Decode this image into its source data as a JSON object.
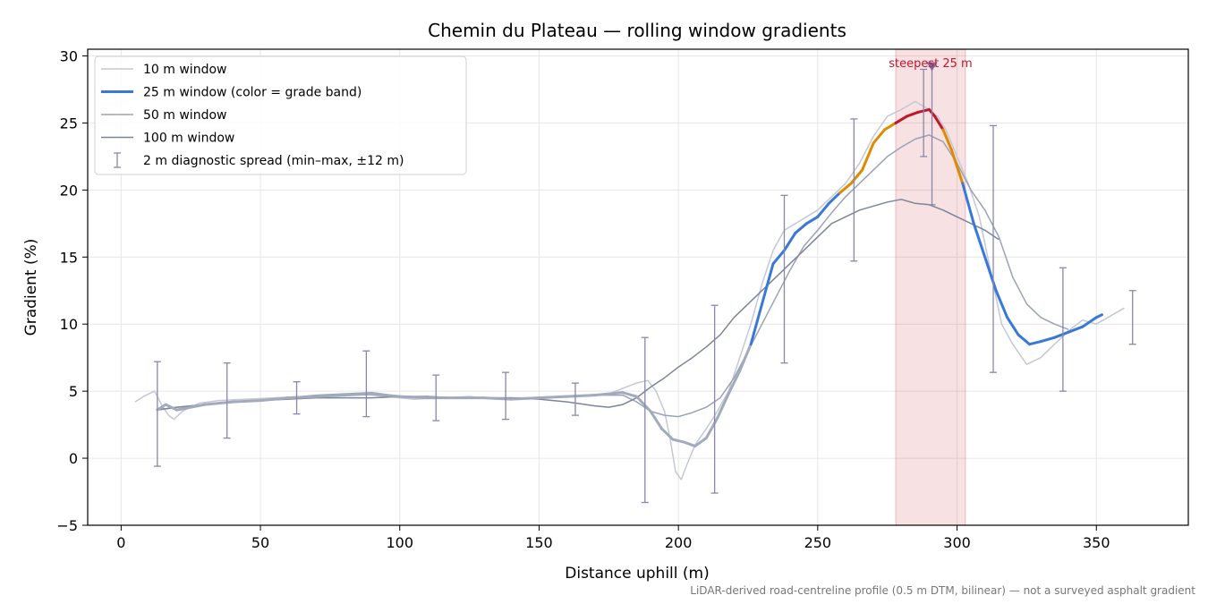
{
  "chart_data": {
    "type": "line",
    "title": "Chemin du Plateau — rolling window gradients",
    "xlabel": "Distance uphill (m)",
    "ylabel": "Gradient (%)",
    "xlim": [
      -12,
      383
    ],
    "ylim": [
      -5,
      30.5
    ],
    "xticks": [
      0,
      50,
      100,
      150,
      200,
      250,
      300,
      350
    ],
    "yticks": [
      -5,
      0,
      5,
      10,
      15,
      20,
      25,
      30
    ],
    "grid": true,
    "legend_position": "top-left",
    "footnote": "LiDAR-derived road-centreline profile (0.5 m DTM, bilinear) — not a surveyed asphalt gradient",
    "highlight": {
      "x_start": 278,
      "x_end": 303,
      "label": "steepest 25 m",
      "marker_x": 291,
      "marker_y": 29.2,
      "color": "#c0182a"
    },
    "grade_band_colors": {
      "low": "#3a78d8",
      "mid": "#e08a00",
      "high": "#c0182a"
    },
    "grade_band_thresholds": [
      20,
      25
    ],
    "series": [
      {
        "name": "10 m window",
        "color": "#c4c8d4",
        "width": 1.5,
        "x": [
          5,
          8,
          12,
          15,
          17,
          19,
          22,
          28,
          35,
          45,
          55,
          65,
          75,
          85,
          95,
          105,
          115,
          125,
          135,
          145,
          155,
          165,
          175,
          180,
          185,
          189,
          192,
          195,
          197,
          199,
          201,
          203,
          206,
          210,
          214,
          218,
          222,
          226,
          230,
          234,
          238,
          242,
          246,
          250,
          255,
          260,
          265,
          270,
          275,
          280,
          285,
          290,
          293,
          296,
          300,
          304,
          308,
          312,
          316,
          320,
          325,
          330,
          335,
          340,
          345,
          350,
          355,
          360
        ],
        "y": [
          4.2,
          4.6,
          5.0,
          3.8,
          3.2,
          2.9,
          3.5,
          4.1,
          4.3,
          4.4,
          4.5,
          4.6,
          4.7,
          4.8,
          4.6,
          4.4,
          4.5,
          4.6,
          4.4,
          4.5,
          4.6,
          4.7,
          4.8,
          5.2,
          5.6,
          5.8,
          5.0,
          3.5,
          1.5,
          -1.0,
          -1.6,
          -0.5,
          1.0,
          2.2,
          3.5,
          5.0,
          7.5,
          10.0,
          13.0,
          15.5,
          17.0,
          17.5,
          18.0,
          18.5,
          19.5,
          20.5,
          22.0,
          24.0,
          25.5,
          26.0,
          26.6,
          26.0,
          25.5,
          24.5,
          22.5,
          20.5,
          18.0,
          14.0,
          10.0,
          8.5,
          7.0,
          7.5,
          8.5,
          9.5,
          10.3,
          10.0,
          10.6,
          11.2
        ]
      },
      {
        "name": "25 m window (color = grade band)",
        "color": "#3a78d8",
        "width": 3,
        "colored_by_grade": true,
        "x": [
          13,
          16,
          20,
          25,
          30,
          40,
          50,
          60,
          70,
          80,
          90,
          100,
          110,
          120,
          130,
          140,
          150,
          160,
          170,
          180,
          185,
          190,
          194,
          198,
          202,
          206,
          210,
          214,
          218,
          222,
          226,
          230,
          234,
          238,
          242,
          246,
          250,
          254,
          258,
          262,
          266,
          270,
          274,
          278,
          282,
          286,
          290,
          292,
          295,
          298,
          302,
          306,
          310,
          314,
          318,
          322,
          326,
          330,
          335,
          340,
          345,
          350,
          352
        ],
        "y": [
          3.6,
          4.0,
          3.6,
          3.8,
          4.0,
          4.2,
          4.3,
          4.5,
          4.6,
          4.7,
          4.8,
          4.6,
          4.5,
          4.5,
          4.5,
          4.4,
          4.5,
          4.6,
          4.7,
          4.9,
          4.6,
          3.5,
          2.2,
          1.4,
          1.2,
          0.9,
          1.5,
          3.0,
          4.8,
          6.5,
          8.5,
          11.5,
          14.5,
          15.5,
          16.8,
          17.5,
          18.0,
          19.0,
          19.8,
          20.5,
          21.5,
          23.5,
          24.5,
          25.0,
          25.5,
          25.8,
          26.0,
          25.5,
          24.5,
          23.0,
          20.5,
          17.5,
          15.0,
          12.5,
          10.5,
          9.2,
          8.5,
          8.7,
          9.0,
          9.4,
          9.8,
          10.5,
          10.7
        ]
      },
      {
        "name": "50 m window",
        "color": "#9aa3b5",
        "width": 1.5,
        "x": [
          13,
          20,
          30,
          40,
          50,
          60,
          70,
          80,
          90,
          100,
          110,
          120,
          130,
          140,
          150,
          160,
          170,
          180,
          185,
          190,
          195,
          200,
          205,
          210,
          215,
          220,
          225,
          230,
          235,
          240,
          245,
          250,
          255,
          260,
          265,
          270,
          275,
          280,
          285,
          290,
          295,
          300,
          305,
          310,
          315,
          320,
          325,
          330,
          335,
          340
        ],
        "y": [
          3.6,
          3.8,
          4.0,
          4.2,
          4.3,
          4.5,
          4.7,
          4.8,
          4.9,
          4.6,
          4.6,
          4.5,
          4.5,
          4.5,
          4.5,
          4.6,
          4.7,
          4.7,
          4.2,
          3.5,
          3.2,
          3.1,
          3.4,
          3.8,
          4.5,
          6.0,
          8.0,
          10.0,
          12.0,
          14.0,
          15.8,
          17.0,
          18.3,
          19.5,
          20.5,
          21.5,
          22.5,
          23.2,
          23.8,
          24.1,
          23.6,
          22.0,
          20.0,
          18.5,
          16.5,
          13.5,
          11.5,
          10.5,
          10.0,
          9.6
        ]
      },
      {
        "name": "100 m window",
        "color": "#7d8595",
        "width": 1.5,
        "x": [
          13,
          20,
          30,
          40,
          50,
          60,
          70,
          80,
          90,
          100,
          110,
          120,
          130,
          140,
          150,
          160,
          170,
          175,
          180,
          185,
          190,
          195,
          200,
          205,
          210,
          215,
          220,
          225,
          230,
          235,
          240,
          245,
          250,
          255,
          260,
          265,
          270,
          275,
          280,
          285,
          290,
          295,
          300,
          305,
          310,
          315
        ],
        "y": [
          3.6,
          3.8,
          4.0,
          4.2,
          4.3,
          4.4,
          4.5,
          4.5,
          4.5,
          4.6,
          4.6,
          4.5,
          4.5,
          4.5,
          4.4,
          4.2,
          3.9,
          3.8,
          4.0,
          4.5,
          5.3,
          6.0,
          6.8,
          7.5,
          8.3,
          9.2,
          10.5,
          11.5,
          12.5,
          13.5,
          14.5,
          15.5,
          16.5,
          17.5,
          18.0,
          18.5,
          18.8,
          19.1,
          19.3,
          19.0,
          18.9,
          18.5,
          18.0,
          17.5,
          17.0,
          16.3
        ]
      }
    ],
    "error_bars": {
      "name": "2 m diagnostic spread (min–max, ±12 m)",
      "color": "#8a86b0",
      "x": [
        13,
        38,
        63,
        88,
        113,
        138,
        163,
        188,
        213,
        238,
        263,
        288,
        291,
        313,
        338,
        363
      ],
      "low": [
        -0.6,
        1.5,
        3.3,
        3.1,
        2.8,
        2.9,
        3.2,
        -3.3,
        -2.6,
        7.1,
        14.7,
        22.5,
        18.9,
        6.4,
        5.0,
        8.5
      ],
      "high": [
        7.2,
        7.1,
        5.7,
        8.0,
        6.2,
        6.4,
        5.6,
        9.0,
        11.4,
        19.6,
        25.3,
        29.0,
        29.2,
        24.8,
        14.2,
        12.5
      ]
    }
  }
}
